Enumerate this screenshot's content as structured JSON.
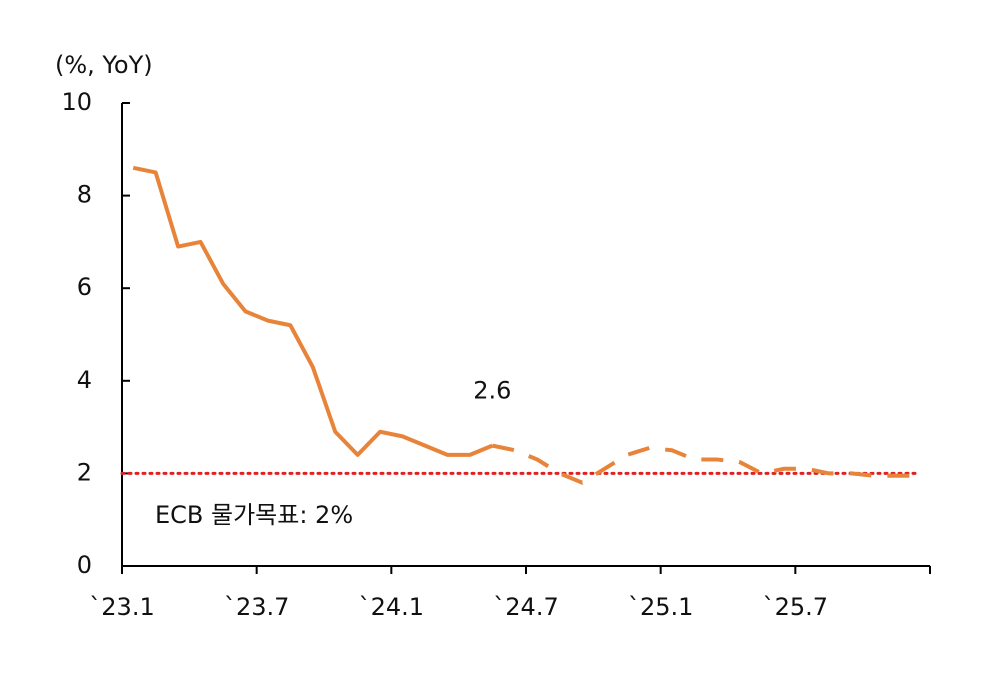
{
  "chart_data": {
    "type": "line",
    "y_label": "(%, YoY)",
    "categories": [
      "`23.1",
      null,
      null,
      null,
      null,
      null,
      "`23.7",
      null,
      null,
      null,
      null,
      null,
      "`24.1",
      null,
      null,
      null,
      null,
      null,
      "`24.7",
      null,
      null,
      null,
      null,
      null,
      "`25.1",
      null,
      null,
      null,
      null,
      null,
      "`25.7",
      null,
      null,
      null,
      null,
      null
    ],
    "series": [
      {
        "color": "#e8843a",
        "dash": false,
        "values": [
          8.6,
          8.5,
          6.9,
          7.0,
          6.1,
          5.5,
          5.3,
          5.2,
          4.3,
          2.9,
          2.4,
          2.9,
          2.8,
          2.6,
          2.4,
          2.4,
          2.6,
          null,
          null,
          null,
          null,
          null,
          null,
          null,
          null,
          null,
          null,
          null,
          null,
          null,
          null,
          null,
          null,
          null,
          null,
          null
        ]
      },
      {
        "color": "#e8843a",
        "dash": true,
        "values": [
          null,
          null,
          null,
          null,
          null,
          null,
          null,
          null,
          null,
          null,
          null,
          null,
          null,
          null,
          null,
          null,
          2.6,
          2.5,
          2.3,
          2.0,
          1.8,
          2.1,
          2.4,
          2.55,
          2.5,
          2.3,
          2.3,
          2.25,
          2.0,
          2.1,
          2.1,
          2.0,
          2.0,
          1.95,
          1.95,
          1.95
        ]
      }
    ],
    "data_label": {
      "series": 0,
      "index": 16
    },
    "target": {
      "value": 2,
      "label": "ECB 물가목표: 2%",
      "color": "#e02020"
    },
    "ylim": [
      0,
      10
    ],
    "yticks": [
      0,
      2,
      4,
      6,
      8,
      10
    ]
  }
}
